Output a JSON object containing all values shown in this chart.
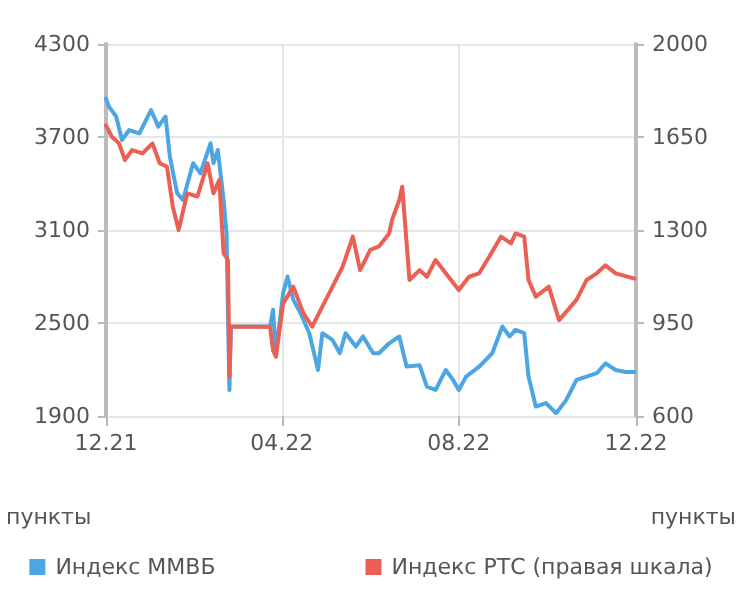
{
  "chart_data": {
    "type": "line",
    "ylabel": "пункты",
    "y2label": "пункты",
    "xlim": [
      "2021-12-01",
      "2022-12-01"
    ],
    "xticks": [
      {
        "value": "2021-12-01",
        "label": "12.21"
      },
      {
        "value": "2022-04-01",
        "label": "04.22"
      },
      {
        "value": "2022-08-01",
        "label": "08.22"
      },
      {
        "value": "2022-12-01",
        "label": "12.22"
      }
    ],
    "ylim": [
      1900,
      4300
    ],
    "yticks": [
      1900,
      2500,
      3100,
      3700,
      4300
    ],
    "y2lim": [
      600,
      2000
    ],
    "y2ticks": [
      600,
      950,
      1300,
      1650,
      2000
    ],
    "grid": true,
    "legend": "bottom",
    "marker": "none",
    "line_style": "solid",
    "series": [
      {
        "name": "Индекс ММВБ",
        "color": "#4ba6e2",
        "x": [
          "2021-12-01",
          "2021-12-03",
          "2021-12-08",
          "2021-12-12",
          "2021-12-17",
          "2021-12-24",
          "2022-01-01",
          "2022-01-06",
          "2022-01-11",
          "2022-01-14",
          "2022-01-19",
          "2022-01-23",
          "2022-01-30",
          "2022-02-04",
          "2022-02-11",
          "2022-02-13",
          "2022-02-16",
          "2022-02-20",
          "2022-02-22",
          "2022-02-24",
          "2022-02-25",
          "2022-03-24",
          "2022-03-26",
          "2022-03-28",
          "2022-04-02",
          "2022-04-05",
          "2022-04-09",
          "2022-04-14",
          "2022-04-20",
          "2022-04-26",
          "2022-04-29",
          "2022-05-06",
          "2022-05-11",
          "2022-05-15",
          "2022-05-22",
          "2022-05-27",
          "2022-06-03",
          "2022-06-07",
          "2022-06-14",
          "2022-06-21",
          "2022-06-26",
          "2022-07-05",
          "2022-07-10",
          "2022-07-16",
          "2022-07-23",
          "2022-07-28",
          "2022-08-01",
          "2022-08-06",
          "2022-08-15",
          "2022-08-24",
          "2022-08-31",
          "2022-09-05",
          "2022-09-09",
          "2022-09-15",
          "2022-09-18",
          "2022-09-23",
          "2022-09-30",
          "2022-10-07",
          "2022-10-14",
          "2022-10-21",
          "2022-10-28",
          "2022-11-04",
          "2022-11-10",
          "2022-11-17",
          "2022-11-24",
          "2022-11-30"
        ],
        "values": [
          3948,
          3896,
          3832,
          3681,
          3745,
          3723,
          3874,
          3767,
          3832,
          3574,
          3337,
          3294,
          3531,
          3466,
          3660,
          3531,
          3616,
          3294,
          3078,
          2068,
          2477,
          2477,
          2585,
          2305,
          2692,
          2800,
          2649,
          2563,
          2434,
          2197,
          2434,
          2391,
          2305,
          2434,
          2348,
          2413,
          2305,
          2305,
          2369,
          2413,
          2219,
          2227,
          2090,
          2068,
          2197,
          2133,
          2068,
          2154,
          2219,
          2305,
          2477,
          2413,
          2456,
          2434,
          2154,
          1961,
          1983,
          1918,
          2004,
          2133,
          2154,
          2176,
          2240,
          2197,
          2184,
          2184
        ]
      },
      {
        "name": "Индекс РТС (правая шкала)",
        "color": "#eb6054",
        "axis": "y2",
        "x": [
          "2021-12-01",
          "2021-12-05",
          "2021-12-10",
          "2021-12-14",
          "2021-12-19",
          "2021-12-26",
          "2022-01-02",
          "2022-01-07",
          "2022-01-12",
          "2022-01-16",
          "2022-01-20",
          "2022-01-26",
          "2022-02-02",
          "2022-02-09",
          "2022-02-13",
          "2022-02-17",
          "2022-02-20",
          "2022-02-23",
          "2022-02-24",
          "2022-02-25",
          "2022-03-24",
          "2022-03-26",
          "2022-03-28",
          "2022-04-02",
          "2022-04-09",
          "2022-04-16",
          "2022-04-22",
          "2022-04-29",
          "2022-05-06",
          "2022-05-13",
          "2022-05-20",
          "2022-05-25",
          "2022-06-01",
          "2022-06-07",
          "2022-06-14",
          "2022-06-16",
          "2022-06-21",
          "2022-06-23",
          "2022-06-28",
          "2022-07-05",
          "2022-07-10",
          "2022-07-16",
          "2022-07-23",
          "2022-08-01",
          "2022-08-08",
          "2022-08-15",
          "2022-08-22",
          "2022-08-30",
          "2022-09-06",
          "2022-09-09",
          "2022-09-15",
          "2022-09-18",
          "2022-09-23",
          "2022-10-02",
          "2022-10-09",
          "2022-10-21",
          "2022-10-28",
          "2022-11-04",
          "2022-11-10",
          "2022-11-17",
          "2022-11-30"
        ],
        "values": [
          1694,
          1651,
          1626,
          1563,
          1601,
          1588,
          1626,
          1551,
          1538,
          1388,
          1300,
          1438,
          1426,
          1551,
          1438,
          1488,
          1212,
          1187,
          748,
          936,
          936,
          848,
          823,
          1024,
          1087,
          986,
          936,
          1012,
          1087,
          1162,
          1275,
          1149,
          1225,
          1238,
          1287,
          1338,
          1413,
          1463,
          1112,
          1149,
          1124,
          1187,
          1137,
          1074,
          1124,
          1137,
          1200,
          1275,
          1250,
          1287,
          1275,
          1112,
          1049,
          1087,
          961,
          1037,
          1112,
          1137,
          1167,
          1137,
          1117
        ]
      }
    ]
  }
}
